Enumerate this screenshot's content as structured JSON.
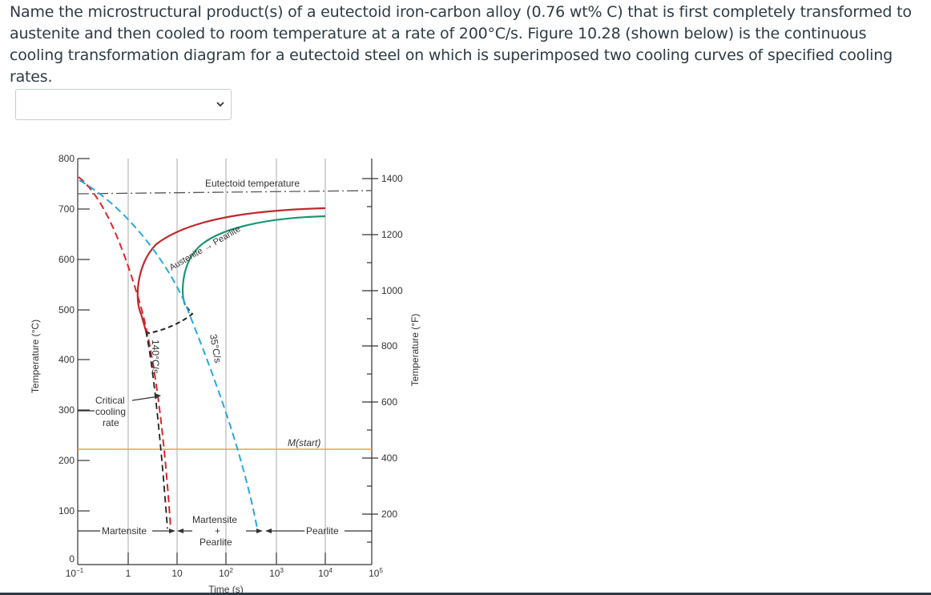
{
  "question": {
    "text": "Name the microstructural product(s) of a eutectoid iron-carbon alloy (0.76 wt% C) that is first completely transformed to austenite and then cooled to room temperature at a rate of 200°C/s. Figure 10.28 (shown below) is the continuous cooling transformation diagram for a eutectoid steel on which is superimposed two cooling curves of specified cooling rates."
  },
  "answer_select": {
    "selected": "",
    "icon": "chevron-down-icon"
  },
  "diagram": {
    "left_axis_title": "Temperature (°C)",
    "right_axis_title": "Temperature (°F)",
    "x_axis_title": "Time (s)",
    "celsius_ticks": [
      "800",
      "700",
      "600",
      "500",
      "400",
      "300",
      "200",
      "100",
      "0"
    ],
    "fahrenheit_ticks": [
      "1400",
      "1200",
      "1000",
      "800",
      "600",
      "400",
      "200"
    ],
    "time_ticks": [
      {
        "base": "10",
        "exp": "−1"
      },
      {
        "base": "1",
        "exp": ""
      },
      {
        "base": "10",
        "exp": ""
      },
      {
        "base": "10",
        "exp": "2"
      },
      {
        "base": "10",
        "exp": "3"
      },
      {
        "base": "10",
        "exp": "4"
      },
      {
        "base": "10",
        "exp": "5"
      }
    ],
    "labels": {
      "eutectoid": "Eutectoid temperature",
      "austenite_pearlite_a": "Austenite",
      "austenite_pearlite_arrow": "→",
      "austenite_pearlite_b": "Pearlite",
      "rate_140": "140°C/s",
      "rate_35": "35°C/s",
      "critical_1": "Critical",
      "critical_2": "cooling",
      "critical_3": "rate",
      "mstart": "M(start)",
      "martensite": "Martensite",
      "martensite_pearlite_1": "Martensite",
      "martensite_pearlite_2": "+",
      "martensite_pearlite_3": "Pearlite",
      "pearlite": "Pearlite"
    },
    "colors": {
      "frame": "#333333",
      "start_curve": "#c0282d",
      "finish_curve": "#1a9673",
      "cooling_140": "#e0232b",
      "cooling_35": "#29a8e0",
      "critical": "#222222",
      "mstart_line": "#f4a13a"
    }
  }
}
